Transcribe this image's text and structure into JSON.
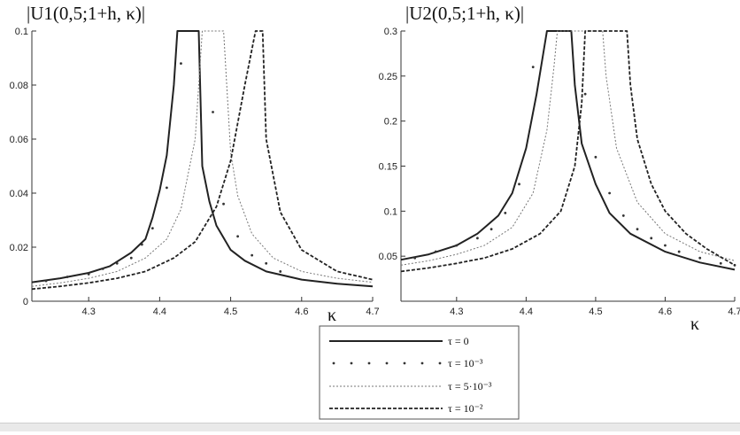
{
  "chart_data": [
    {
      "type": "line",
      "title": "|U1(0,5;1+h, κ)|",
      "xlabel": "κ",
      "ylabel": "",
      "xlim": [
        4.22,
        4.7
      ],
      "ylim": [
        0,
        0.1
      ],
      "x_ticks": [
        "4.3",
        "4.4",
        "4.5",
        "4.6",
        "4.7"
      ],
      "y_ticks": [
        "0",
        "0.02",
        "0.04",
        "0.06",
        "0.08",
        "0.1"
      ],
      "series": [
        {
          "name": "τ = 0",
          "x": [
            4.22,
            4.26,
            4.3,
            4.33,
            4.36,
            4.38,
            4.39,
            4.4,
            4.41,
            4.42,
            4.425,
            4.455,
            4.46,
            4.47,
            4.48,
            4.5,
            4.52,
            4.55,
            4.6,
            4.65,
            4.7
          ],
          "y": [
            0.007,
            0.0085,
            0.0105,
            0.013,
            0.018,
            0.023,
            0.031,
            0.041,
            0.054,
            0.08,
            0.1,
            0.1,
            0.05,
            0.037,
            0.028,
            0.019,
            0.015,
            0.011,
            0.008,
            0.0065,
            0.0055
          ]
        },
        {
          "name": "τ = 10⁻³",
          "x": [
            4.24,
            4.27,
            4.3,
            4.32,
            4.34,
            4.36,
            4.375,
            4.39,
            4.41,
            4.43,
            4.475,
            4.49,
            4.51,
            4.53,
            4.55,
            4.57
          ],
          "y": [
            0.0075,
            0.009,
            0.01,
            0.012,
            0.014,
            0.016,
            0.021,
            0.027,
            0.042,
            0.088,
            0.07,
            0.036,
            0.024,
            0.017,
            0.014,
            0.011
          ]
        },
        {
          "name": "τ = 5·10⁻³",
          "x": [
            4.22,
            4.26,
            4.3,
            4.34,
            4.38,
            4.41,
            4.43,
            4.45,
            4.46,
            4.465,
            4.49,
            4.5,
            4.51,
            4.53,
            4.56,
            4.6,
            4.65,
            4.7
          ],
          "y": [
            0.0055,
            0.0068,
            0.0085,
            0.011,
            0.016,
            0.023,
            0.034,
            0.06,
            0.1,
            0.1,
            0.1,
            0.055,
            0.039,
            0.025,
            0.016,
            0.011,
            0.0085,
            0.007
          ]
        },
        {
          "name": "τ = 10⁻²",
          "x": [
            4.22,
            4.26,
            4.3,
            4.34,
            4.38,
            4.42,
            4.45,
            4.48,
            4.5,
            4.52,
            4.535,
            4.54,
            4.545,
            4.55,
            4.57,
            4.6,
            4.65,
            4.7
          ],
          "y": [
            0.0045,
            0.0055,
            0.0068,
            0.0085,
            0.011,
            0.016,
            0.022,
            0.035,
            0.052,
            0.08,
            0.1,
            0.1,
            0.1,
            0.06,
            0.033,
            0.019,
            0.011,
            0.008
          ]
        }
      ]
    },
    {
      "type": "line",
      "title": "|U2(0,5;1+h, κ)|",
      "xlabel": "κ",
      "ylabel": "",
      "xlim": [
        4.22,
        4.7
      ],
      "ylim": [
        0,
        0.3
      ],
      "x_ticks": [
        "4.3",
        "4.4",
        "4.5",
        "4.6",
        "4.7"
      ],
      "y_ticks": [
        "0.05",
        "0.1",
        "0.15",
        "0.2",
        "0.25",
        "0.3"
      ],
      "series": [
        {
          "name": "τ = 0",
          "x": [
            4.22,
            4.26,
            4.3,
            4.33,
            4.36,
            4.38,
            4.4,
            4.415,
            4.43,
            4.435,
            4.465,
            4.47,
            4.48,
            4.5,
            4.52,
            4.55,
            4.6,
            4.65,
            4.7
          ],
          "y": [
            0.046,
            0.052,
            0.062,
            0.075,
            0.095,
            0.12,
            0.17,
            0.23,
            0.3,
            0.3,
            0.3,
            0.24,
            0.175,
            0.13,
            0.098,
            0.075,
            0.055,
            0.043,
            0.035
          ]
        },
        {
          "name": "τ = 10⁻³",
          "x": [
            4.24,
            4.27,
            4.3,
            4.33,
            4.35,
            4.37,
            4.39,
            4.41,
            4.485,
            4.5,
            4.52,
            4.54,
            4.56,
            4.58,
            4.6,
            4.62,
            4.65,
            4.68,
            4.7
          ],
          "y": [
            0.048,
            0.055,
            0.062,
            0.07,
            0.08,
            0.098,
            0.13,
            0.26,
            0.23,
            0.16,
            0.12,
            0.095,
            0.08,
            0.07,
            0.062,
            0.055,
            0.048,
            0.042,
            0.04
          ]
        },
        {
          "name": "τ = 5·10⁻³",
          "x": [
            4.22,
            4.26,
            4.3,
            4.34,
            4.38,
            4.41,
            4.43,
            4.44,
            4.445,
            4.51,
            4.515,
            4.53,
            4.56,
            4.6,
            4.65,
            4.7
          ],
          "y": [
            0.04,
            0.045,
            0.052,
            0.062,
            0.082,
            0.12,
            0.19,
            0.26,
            0.3,
            0.3,
            0.25,
            0.17,
            0.11,
            0.075,
            0.055,
            0.045
          ]
        },
        {
          "name": "τ = 10⁻²",
          "x": [
            4.22,
            4.26,
            4.3,
            4.34,
            4.38,
            4.42,
            4.45,
            4.47,
            4.48,
            4.485,
            4.545,
            4.55,
            4.56,
            4.58,
            4.6,
            4.63,
            4.66,
            4.7
          ],
          "y": [
            0.033,
            0.037,
            0.042,
            0.048,
            0.058,
            0.075,
            0.1,
            0.15,
            0.22,
            0.3,
            0.3,
            0.24,
            0.18,
            0.13,
            0.1,
            0.075,
            0.058,
            0.04
          ]
        }
      ]
    }
  ],
  "legend": {
    "items": [
      {
        "label": "τ = 0",
        "style": "solid"
      },
      {
        "label": "τ = 10⁻³",
        "style": "dots"
      },
      {
        "label": "τ = 5·10⁻³",
        "style": "thin-dash"
      },
      {
        "label": "τ = 10⁻²",
        "style": "dash"
      }
    ]
  }
}
